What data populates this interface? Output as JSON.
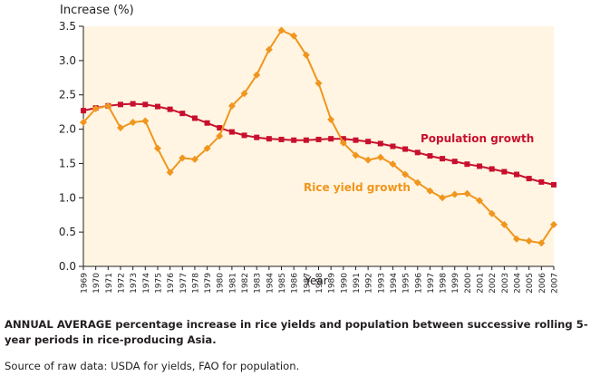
{
  "chart_data": {
    "type": "line",
    "ylabel": "Increase (%)",
    "xlabel": "Year",
    "ylim": [
      0,
      3.5
    ],
    "y_ticks": [
      "0.0",
      "0.5",
      "1.0",
      "1.5",
      "2.0",
      "2.5",
      "3.0",
      "3.5"
    ],
    "x": [
      "1969",
      "1970",
      "1971",
      "1972",
      "1973",
      "1974",
      "1975",
      "1976",
      "1977",
      "1978",
      "1979",
      "1980",
      "1981",
      "1982",
      "1983",
      "1984",
      "1985",
      "1986",
      "1987",
      "1988",
      "1989",
      "1990",
      "1991",
      "1992",
      "1993",
      "1994",
      "1995",
      "1996",
      "1997",
      "1998",
      "1999",
      "2000",
      "2001",
      "2002",
      "2003",
      "2004",
      "2005",
      "2006",
      "2007"
    ],
    "grid": false,
    "series": [
      {
        "name": "Population growth",
        "color": "#c8102e",
        "marker": "square",
        "values": [
          2.27,
          2.31,
          2.34,
          2.36,
          2.37,
          2.36,
          2.33,
          2.29,
          2.23,
          2.16,
          2.09,
          2.02,
          1.96,
          1.91,
          1.88,
          1.86,
          1.85,
          1.84,
          1.84,
          1.85,
          1.86,
          1.86,
          1.84,
          1.82,
          1.79,
          1.75,
          1.71,
          1.66,
          1.61,
          1.57,
          1.53,
          1.49,
          1.46,
          1.42,
          1.38,
          1.34,
          1.28,
          1.23,
          1.19
        ]
      },
      {
        "name": "Rice yield growth",
        "color": "#f0961e",
        "marker": "diamond",
        "values": [
          2.1,
          2.3,
          2.34,
          2.02,
          2.1,
          2.12,
          1.72,
          1.37,
          1.58,
          1.56,
          1.72,
          1.9,
          2.34,
          2.52,
          2.79,
          3.16,
          3.44,
          3.36,
          3.08,
          2.67,
          2.14,
          1.8,
          1.62,
          1.55,
          1.59,
          1.49,
          1.34,
          1.22,
          1.1,
          1.0,
          1.05,
          1.06,
          0.96,
          0.77,
          0.61,
          0.4,
          0.37,
          0.34,
          0.61
        ]
      }
    ]
  },
  "caption": "ANNUAL AVERAGE percentage increase in rice yields and population between successive rolling 5-year periods in rice-producing Asia.",
  "source": "Source of raw data: USDA for yields, FAO for population."
}
